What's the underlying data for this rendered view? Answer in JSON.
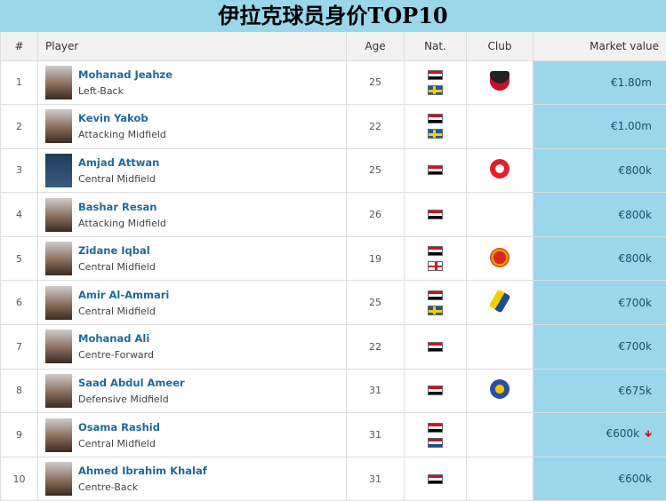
{
  "title": "伊拉克球员身价TOP10",
  "headers": {
    "num": "#",
    "player": "Player",
    "age": "Age",
    "nat": "Nat.",
    "club": "Club",
    "mv": "Market value"
  },
  "rows": [
    {
      "rank": "1",
      "name": "Mohanad Jeahze",
      "position": "Left-Back",
      "age": "25",
      "flags": [
        "iraq",
        "sweden"
      ],
      "club": "dc-united-crest",
      "value": "€1.80m"
    },
    {
      "rank": "2",
      "name": "Kevin Yakob",
      "position": "Attacking Midfield",
      "age": "22",
      "flags": [
        "iraq",
        "sweden"
      ],
      "club": "",
      "value": "€1.00m"
    },
    {
      "rank": "3",
      "name": "Amjad Attwan",
      "position": "Central Midfield",
      "age": "25",
      "flags": [
        "iraq"
      ],
      "club": "red-club-crest",
      "value": "€800k"
    },
    {
      "rank": "4",
      "name": "Bashar Resan",
      "position": "Attacking Midfield",
      "age": "26",
      "flags": [
        "iraq"
      ],
      "club": "",
      "value": "€800k"
    },
    {
      "rank": "5",
      "name": "Zidane Iqbal",
      "position": "Central Midfield",
      "age": "19",
      "flags": [
        "iraq",
        "england"
      ],
      "club": "manchester-united-crest",
      "value": "€800k"
    },
    {
      "rank": "6",
      "name": "Amir Al-Ammari",
      "position": "Central Midfield",
      "age": "25",
      "flags": [
        "iraq",
        "sweden"
      ],
      "club": "yellow-blue-club-crest",
      "value": "€700k"
    },
    {
      "rank": "7",
      "name": "Mohanad Ali",
      "position": "Centre-Forward",
      "age": "22",
      "flags": [
        "iraq"
      ],
      "club": "",
      "value": "€700k"
    },
    {
      "rank": "8",
      "name": "Saad Abdul Ameer",
      "position": "Defensive Midfield",
      "age": "31",
      "flags": [
        "iraq"
      ],
      "club": "blue-club-crest",
      "value": "€675k"
    },
    {
      "rank": "9",
      "name": "Osama Rashid",
      "position": "Central Midfield",
      "age": "31",
      "flags": [
        "iraq",
        "netherlands"
      ],
      "club": "",
      "value": "€600k",
      "trend": "down"
    },
    {
      "rank": "10",
      "name": "Ahmed Ibrahim Khalaf",
      "position": "Centre-Back",
      "age": "31",
      "flags": [
        "iraq"
      ],
      "club": "",
      "value": "€600k"
    }
  ],
  "colors": {
    "accent": "#9ad7ea",
    "link": "#1d6a9a",
    "down_arrow": "#d01010"
  }
}
